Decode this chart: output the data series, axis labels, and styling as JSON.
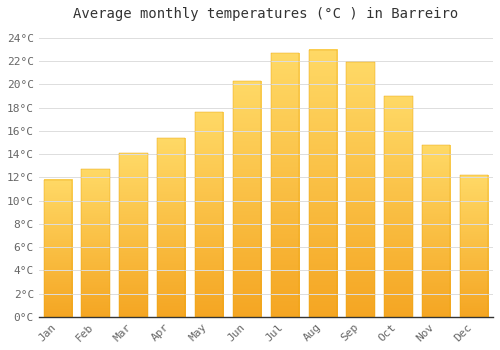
{
  "title": "Average monthly temperatures (°C ) in Barreiro",
  "months": [
    "Jan",
    "Feb",
    "Mar",
    "Apr",
    "May",
    "Jun",
    "Jul",
    "Aug",
    "Sep",
    "Oct",
    "Nov",
    "Dec"
  ],
  "values": [
    11.8,
    12.7,
    14.1,
    15.4,
    17.6,
    20.3,
    22.7,
    23.0,
    21.9,
    19.0,
    14.8,
    12.2
  ],
  "bar_color_bottom": "#F5A623",
  "bar_color_top": "#FFD966",
  "bar_edge_color": "none",
  "background_color": "#FFFFFF",
  "grid_color": "#DDDDDD",
  "ylim": [
    0,
    25
  ],
  "yticks": [
    0,
    2,
    4,
    6,
    8,
    10,
    12,
    14,
    16,
    18,
    20,
    22,
    24
  ],
  "ylabel_suffix": "°C",
  "title_fontsize": 10,
  "tick_fontsize": 8,
  "font_family": "monospace"
}
